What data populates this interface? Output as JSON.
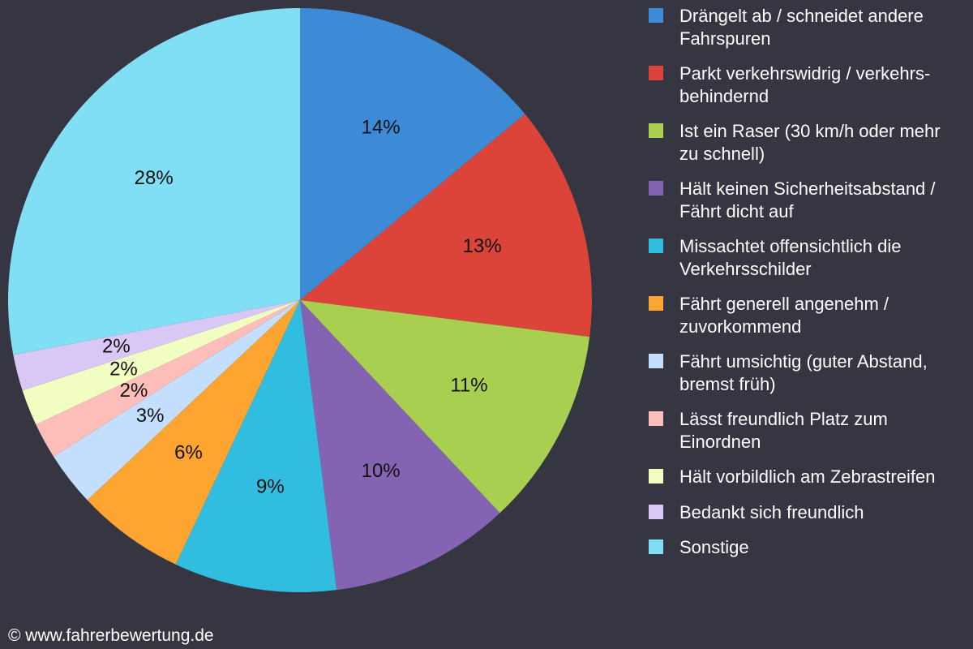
{
  "chart_data": {
    "type": "pie",
    "categories": [
      "Drängelt ab / schneidet andere Fahrspuren",
      "Parkt verkehrswidrig / verkehrs-behindernd",
      "Ist ein Raser (30 km/h oder mehr zu schnell)",
      "Hält keinen Sicherheitsabstand / Fährt dicht auf",
      "Missachtet offensichtlich die Verkehrsschilder",
      "Fährt generell angenehm / zuvorkommend",
      "Fährt umsichtig (guter Abstand, bremst früh)",
      "Lässt freundlich Platz zum Einordnen",
      "Hält vorbildlich am Zebrastreifen",
      "Bedankt sich freundlich",
      "Sonstige"
    ],
    "values": [
      14,
      13,
      11,
      10,
      9,
      6,
      3,
      2,
      2,
      2,
      28
    ],
    "value_labels": [
      "14%",
      "13%",
      "11%",
      "10%",
      "9%",
      "6%",
      "3%",
      "2%",
      "2%",
      "2%",
      "28%"
    ],
    "colors": [
      "#3d8ad6",
      "#dc4339",
      "#a8cf4f",
      "#8463b3",
      "#31bde0",
      "#fda431",
      "#c3dffd",
      "#fdbdb9",
      "#f2fdc2",
      "#d9c8f6",
      "#80def5"
    ],
    "credit": "© www.fahrerbewertung.de"
  }
}
